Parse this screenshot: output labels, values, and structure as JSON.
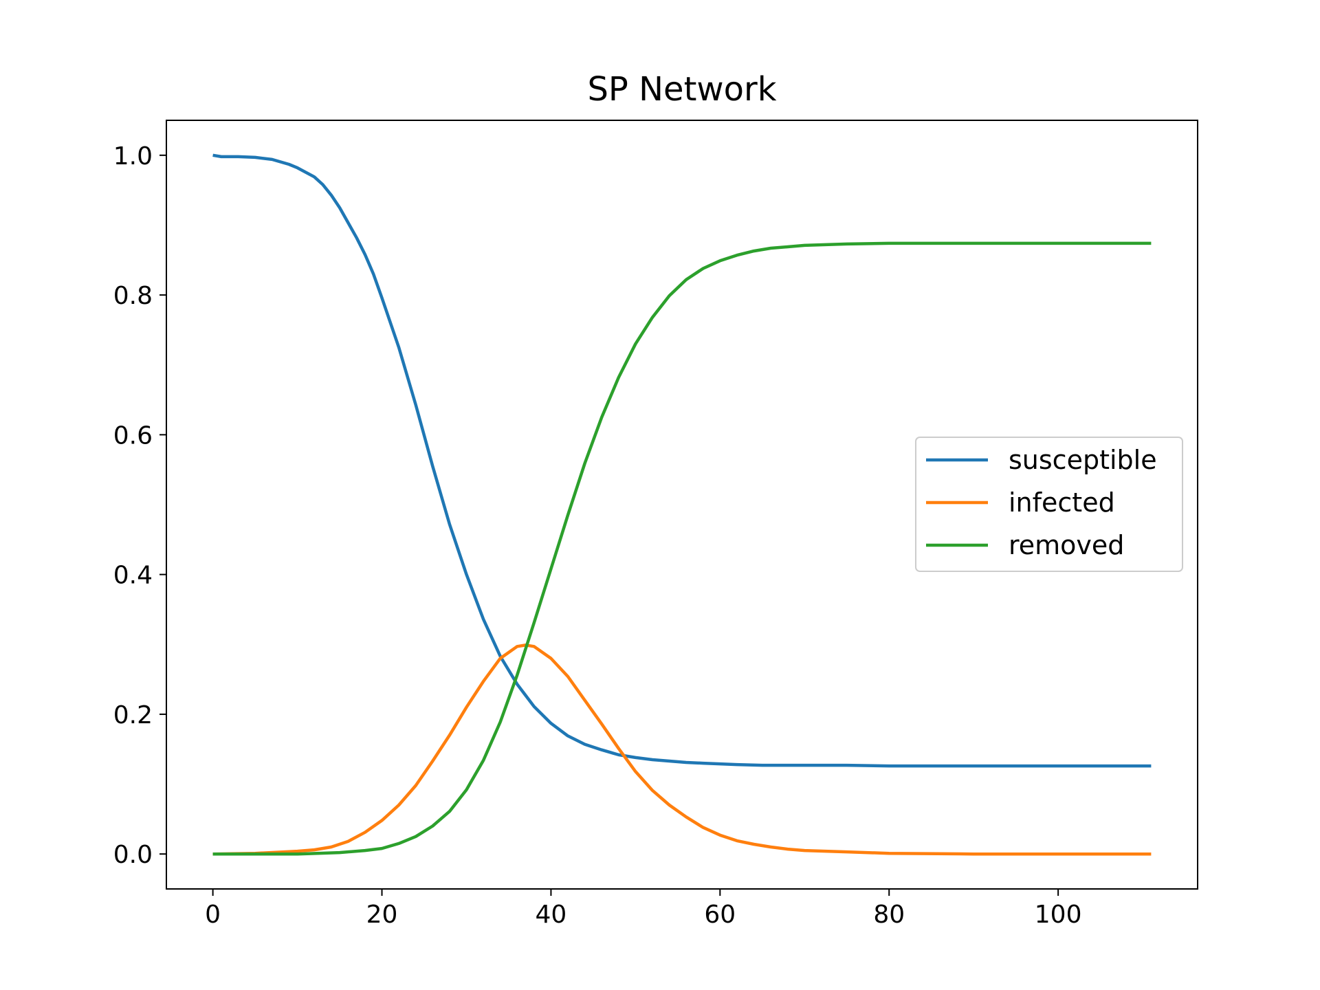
{
  "chart_data": {
    "type": "line",
    "title": "SP Network",
    "xlabel": "",
    "ylabel": "",
    "xlim": [
      -5.5,
      116.5
    ],
    "ylim": [
      -0.05,
      1.05
    ],
    "xticks": [
      0,
      20,
      40,
      60,
      80,
      100
    ],
    "xtick_labels": [
      "0",
      "20",
      "40",
      "60",
      "80",
      "100"
    ],
    "yticks": [
      0.0,
      0.2,
      0.4,
      0.6,
      0.8,
      1.0
    ],
    "ytick_labels": [
      "0.0",
      "0.2",
      "0.4",
      "0.6",
      "0.8",
      "1.0"
    ],
    "grid": false,
    "legend_position": "center-right",
    "series": [
      {
        "name": "susceptible",
        "color": "#1f77b4",
        "x": [
          0,
          1,
          3,
          5,
          7,
          9,
          10,
          12,
          13,
          14,
          15,
          17,
          18,
          19,
          20,
          22,
          24,
          26,
          28,
          30,
          32,
          34,
          36,
          38,
          40,
          42,
          44,
          46,
          48,
          50,
          52,
          54,
          56,
          58,
          60,
          62,
          65,
          70,
          75,
          80,
          90,
          100,
          111
        ],
        "y": [
          1.0,
          0.998,
          0.998,
          0.997,
          0.994,
          0.987,
          0.982,
          0.969,
          0.958,
          0.943,
          0.925,
          0.882,
          0.858,
          0.83,
          0.796,
          0.725,
          0.643,
          0.555,
          0.472,
          0.4,
          0.336,
          0.283,
          0.243,
          0.211,
          0.187,
          0.169,
          0.157,
          0.149,
          0.142,
          0.138,
          0.135,
          0.133,
          0.131,
          0.13,
          0.129,
          0.128,
          0.127,
          0.127,
          0.127,
          0.126,
          0.126,
          0.126,
          0.126
        ]
      },
      {
        "name": "infected",
        "color": "#ff7f0e",
        "x": [
          0,
          5,
          10,
          12,
          14,
          16,
          18,
          20,
          22,
          24,
          26,
          28,
          30,
          32,
          34,
          36,
          37,
          38,
          40,
          42,
          44,
          46,
          48,
          50,
          52,
          54,
          56,
          58,
          60,
          62,
          64,
          66,
          68,
          70,
          75,
          80,
          90,
          100,
          111
        ],
        "y": [
          0.0,
          0.001,
          0.004,
          0.006,
          0.01,
          0.018,
          0.031,
          0.048,
          0.07,
          0.098,
          0.133,
          0.17,
          0.21,
          0.247,
          0.28,
          0.297,
          0.299,
          0.297,
          0.28,
          0.254,
          0.22,
          0.186,
          0.151,
          0.118,
          0.091,
          0.07,
          0.053,
          0.038,
          0.027,
          0.019,
          0.014,
          0.01,
          0.007,
          0.005,
          0.003,
          0.001,
          0.0,
          0.0,
          0.0
        ]
      },
      {
        "name": "removed",
        "color": "#2ca02c",
        "x": [
          0,
          5,
          10,
          15,
          18,
          20,
          22,
          24,
          26,
          28,
          30,
          32,
          34,
          36,
          38,
          40,
          42,
          44,
          46,
          48,
          50,
          52,
          54,
          56,
          58,
          60,
          62,
          64,
          66,
          68,
          70,
          75,
          80,
          90,
          100,
          111
        ],
        "y": [
          0.0,
          0.0,
          0.0,
          0.002,
          0.005,
          0.008,
          0.015,
          0.025,
          0.04,
          0.061,
          0.092,
          0.134,
          0.189,
          0.256,
          0.331,
          0.408,
          0.485,
          0.559,
          0.625,
          0.682,
          0.73,
          0.768,
          0.799,
          0.822,
          0.838,
          0.849,
          0.857,
          0.863,
          0.867,
          0.869,
          0.871,
          0.873,
          0.874,
          0.874,
          0.874,
          0.874
        ]
      }
    ]
  }
}
